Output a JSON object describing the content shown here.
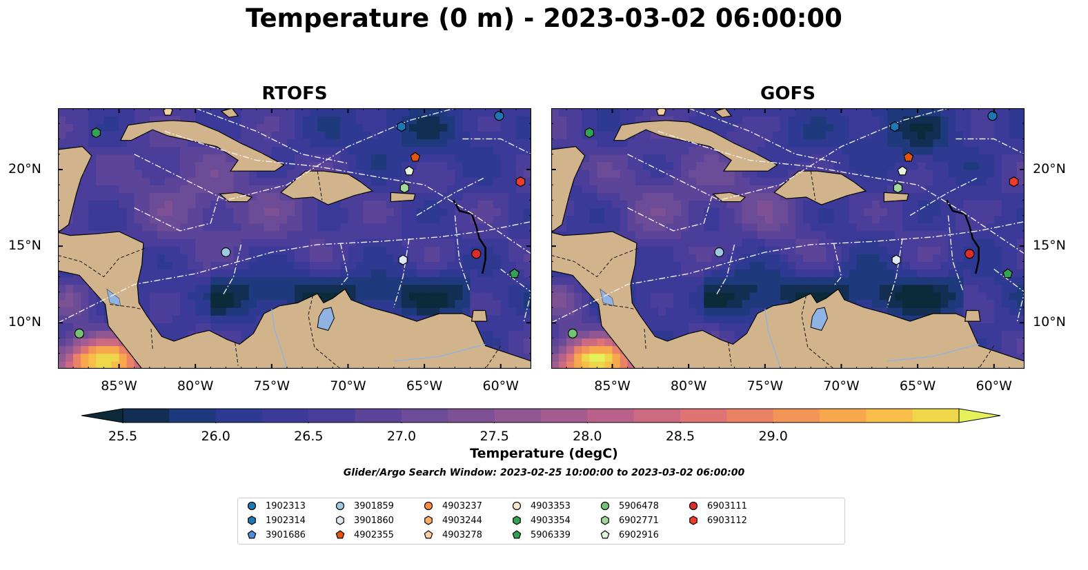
{
  "title": "Temperature (0 m) - 2023-03-02 06:00:00",
  "panels": [
    {
      "title": "RTOFS"
    },
    {
      "title": "GOFS"
    }
  ],
  "lon_ticks": [
    "85°W",
    "80°W",
    "75°W",
    "70°W",
    "65°W",
    "60°W"
  ],
  "lat_ticks": [
    "20°N",
    "15°N",
    "10°N"
  ],
  "map_extent": {
    "lon": [
      -89,
      -58
    ],
    "lat": [
      7,
      24
    ]
  },
  "colorbar": {
    "label": "Temperature (degC)",
    "ticks": [
      "25.5",
      "26.0",
      "26.5",
      "27.0",
      "27.5",
      "28.0",
      "28.5",
      "29.0"
    ],
    "range": [
      25.25,
      29.5
    ],
    "step": 0.25,
    "colors": [
      "#0c2a3a",
      "#122e52",
      "#1e3a7d",
      "#2e3a92",
      "#3b3a98",
      "#4b3d9a",
      "#5c4599",
      "#6c4c97",
      "#7d5194",
      "#8f5893",
      "#a35d90",
      "#b8628b",
      "#cc6a82",
      "#de7474",
      "#ea8365",
      "#f39556",
      "#f7a84c",
      "#f7bf4a",
      "#efd74c",
      "#e5f05a"
    ]
  },
  "search_window": "Glider/Argo Search Window: 2023-02-25 10:00:00 to 2023-03-02 06:00:00",
  "legend": [
    {
      "id": "1902313",
      "marker": "circle",
      "color": "#1f77b4"
    },
    {
      "id": "1902314",
      "marker": "hexagon",
      "color": "#1f77b4"
    },
    {
      "id": "3901686",
      "marker": "pentagon",
      "color": "#4a90d9"
    },
    {
      "id": "3901859",
      "marker": "circle",
      "color": "#9ecae1"
    },
    {
      "id": "3901860",
      "marker": "hexagon",
      "color": "#deebf7"
    },
    {
      "id": "4902355",
      "marker": "pentagon",
      "color": "#e6550d"
    },
    {
      "id": "4903237",
      "marker": "circle",
      "color": "#fd8d3c"
    },
    {
      "id": "4903244",
      "marker": "hexagon",
      "color": "#fdae6b"
    },
    {
      "id": "4903278",
      "marker": "pentagon",
      "color": "#fdd0a2"
    },
    {
      "id": "4903353",
      "marker": "circle",
      "color": "#fee6ce"
    },
    {
      "id": "4903354",
      "marker": "hexagon",
      "color": "#31a354"
    },
    {
      "id": "5906339",
      "marker": "pentagon",
      "color": "#31a354"
    },
    {
      "id": "5906478",
      "marker": "circle",
      "color": "#74c476"
    },
    {
      "id": "6902771",
      "marker": "hexagon",
      "color": "#a1d99b"
    },
    {
      "id": "6902916",
      "marker": "pentagon",
      "color": "#e5f5e0"
    },
    {
      "id": "6903111",
      "marker": "circle",
      "color": "#de2d26"
    },
    {
      "id": "6903112",
      "marker": "hexagon",
      "color": "#ef3b2c"
    }
  ],
  "floats": [
    {
      "lon": -86.5,
      "lat": 22.4,
      "marker": "hexagon",
      "color": "#31a354"
    },
    {
      "lon": -81.8,
      "lat": 23.8,
      "marker": "pentagon",
      "color": "#fdd0a2"
    },
    {
      "lon": -66.5,
      "lat": 22.8,
      "marker": "hexagon",
      "color": "#1f77b4"
    },
    {
      "lon": -65.6,
      "lat": 20.8,
      "marker": "pentagon",
      "color": "#e6550d"
    },
    {
      "lon": -66.0,
      "lat": 19.9,
      "marker": "pentagon",
      "color": "#e5f5e0"
    },
    {
      "lon": -66.3,
      "lat": 18.8,
      "marker": "hexagon",
      "color": "#a1d99b"
    },
    {
      "lon": -60.1,
      "lat": 23.5,
      "marker": "circle",
      "color": "#1f77b4"
    },
    {
      "lon": -58.7,
      "lat": 19.2,
      "marker": "hexagon",
      "color": "#ef3b2c"
    },
    {
      "lon": -61.6,
      "lat": 14.5,
      "marker": "circle",
      "color": "#de2d26"
    },
    {
      "lon": -59.1,
      "lat": 13.2,
      "marker": "pentagon",
      "color": "#31a354"
    },
    {
      "lon": -66.4,
      "lat": 14.1,
      "marker": "hexagon",
      "color": "#deebf7"
    },
    {
      "lon": -78.0,
      "lat": 14.6,
      "marker": "circle",
      "color": "#9ecae1"
    },
    {
      "lon": -87.6,
      "lat": 9.3,
      "marker": "circle",
      "color": "#74c476"
    }
  ],
  "colors": {
    "land": "#d2b48c",
    "lake": "#8fb3e3",
    "ocean_base": "#3b3a98"
  }
}
